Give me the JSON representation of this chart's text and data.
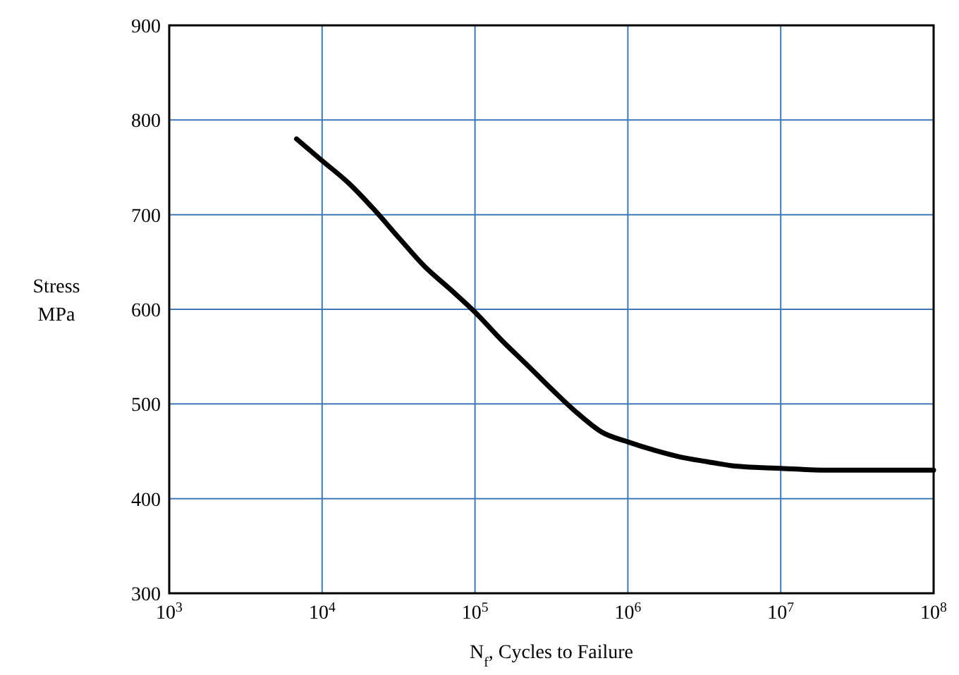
{
  "chart_data": {
    "type": "line",
    "xlabel": "N$_{f}$, Cycles to Failure",
    "ylabel": "Stress MPa",
    "log": "x",
    "grid": true,
    "marker": "none",
    "line_style": "solid",
    "xlim": [
      1000,
      100000000
    ],
    "xticks": [
      {
        "value": 1000,
        "label": "10$^{3}$"
      },
      {
        "value": 10000,
        "label": "10$^{4}$"
      },
      {
        "value": 100000,
        "label": "10$^{5}$"
      },
      {
        "value": 1000000,
        "label": "10$^{6}$"
      },
      {
        "value": 10000000,
        "label": "10$^{7}$"
      },
      {
        "value": 100000000,
        "label": "10$^{8}$"
      }
    ],
    "ylim": [
      300,
      900
    ],
    "yticks": [
      300,
      400,
      500,
      600,
      700,
      800,
      900
    ],
    "series": [
      {
        "color": "#000000",
        "x": [
          6800,
          10000,
          15000,
          22000,
          32000,
          47000,
          68000,
          100000,
          150000,
          220000,
          330000,
          470000,
          680000,
          1000000,
          1500000,
          2200000,
          3300000,
          4700000,
          6800000,
          10000000,
          20000000,
          50000000,
          100000000
        ],
        "values": [
          780,
          757,
          733,
          705,
          675,
          645,
          622,
          597,
          567,
          541,
          513,
          490,
          470,
          460,
          451,
          444,
          439,
          435,
          433,
          432,
          430,
          430,
          430
        ]
      }
    ]
  }
}
